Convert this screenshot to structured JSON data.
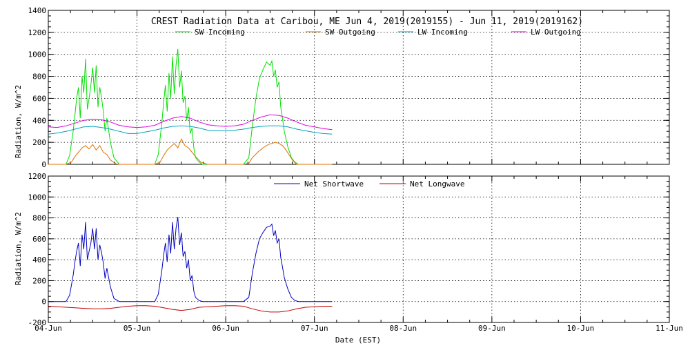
{
  "chart_data": [
    {
      "type": "line",
      "title": "CREST Radiation Data at Caribou, ME   Jun  4, 2019(2019155) - Jun 11, 2019(2019162)",
      "ylabel": "Radiation, W/m^2",
      "xlabel": "",
      "xlim": [
        0,
        7
      ],
      "ylim": [
        0,
        1400
      ],
      "yticks": [
        0,
        200,
        400,
        600,
        800,
        1000,
        1200,
        1400
      ],
      "grid": true,
      "legend": "top",
      "series": [
        {
          "name": "SW Incoming",
          "color": "#00e000",
          "x": [
            0.0,
            0.12,
            0.2,
            0.24,
            0.28,
            0.3,
            0.32,
            0.34,
            0.36,
            0.38,
            0.4,
            0.42,
            0.44,
            0.46,
            0.48,
            0.5,
            0.52,
            0.54,
            0.56,
            0.58,
            0.6,
            0.62,
            0.64,
            0.66,
            0.7,
            0.74,
            0.8,
            1.0,
            1.2,
            1.24,
            1.28,
            1.3,
            1.32,
            1.34,
            1.36,
            1.38,
            1.4,
            1.42,
            1.44,
            1.46,
            1.48,
            1.5,
            1.52,
            1.54,
            1.56,
            1.58,
            1.6,
            1.62,
            1.64,
            1.66,
            1.7,
            1.74,
            1.8,
            2.0,
            2.2,
            2.26,
            2.3,
            2.34,
            2.38,
            2.42,
            2.46,
            2.5,
            2.52,
            2.54,
            2.56,
            2.58,
            2.6,
            2.62,
            2.64,
            2.66,
            2.7,
            2.74,
            2.78,
            2.82,
            2.86,
            3.0,
            3.2
          ],
          "y": [
            0,
            0,
            0,
            80,
            300,
            450,
            600,
            700,
            420,
            800,
            650,
            960,
            500,
            600,
            720,
            880,
            650,
            900,
            520,
            700,
            610,
            480,
            300,
            420,
            200,
            60,
            0,
            0,
            0,
            90,
            380,
            560,
            720,
            480,
            830,
            600,
            980,
            640,
            900,
            1050,
            700,
            850,
            560,
            620,
            400,
            520,
            280,
            330,
            150,
            60,
            20,
            0,
            0,
            0,
            0,
            60,
            350,
            600,
            780,
            860,
            930,
            900,
            940,
            800,
            860,
            700,
            750,
            520,
            420,
            300,
            160,
            60,
            20,
            0,
            0,
            0,
            0
          ]
        },
        {
          "name": "SW Outgoing",
          "color": "#e07000",
          "x": [
            0.0,
            0.12,
            0.2,
            0.26,
            0.3,
            0.34,
            0.38,
            0.42,
            0.46,
            0.5,
            0.54,
            0.58,
            0.62,
            0.66,
            0.7,
            0.76,
            0.8,
            1.0,
            1.2,
            1.26,
            1.3,
            1.34,
            1.38,
            1.42,
            1.46,
            1.5,
            1.54,
            1.58,
            1.62,
            1.66,
            1.72,
            1.8,
            2.0,
            2.2,
            2.26,
            2.3,
            2.36,
            2.42,
            2.48,
            2.52,
            2.56,
            2.6,
            2.64,
            2.68,
            2.72,
            2.76,
            2.8,
            2.86,
            3.0,
            3.2
          ],
          "y": [
            0,
            0,
            0,
            20,
            70,
            110,
            150,
            170,
            140,
            180,
            130,
            170,
            110,
            90,
            40,
            5,
            0,
            0,
            0,
            20,
            80,
            130,
            160,
            190,
            150,
            230,
            170,
            150,
            110,
            70,
            20,
            0,
            0,
            0,
            10,
            60,
            110,
            150,
            180,
            190,
            200,
            190,
            170,
            130,
            80,
            30,
            0,
            0,
            0,
            0
          ]
        },
        {
          "name": "LW Incoming",
          "color": "#00a0c0",
          "x": [
            0.0,
            0.1,
            0.2,
            0.3,
            0.4,
            0.5,
            0.6,
            0.7,
            0.8,
            0.9,
            1.0,
            1.1,
            1.2,
            1.3,
            1.4,
            1.5,
            1.6,
            1.7,
            1.8,
            1.9,
            2.0,
            2.1,
            2.2,
            2.3,
            2.4,
            2.5,
            2.6,
            2.7,
            2.8,
            2.9,
            3.0,
            3.1,
            3.2
          ],
          "y": [
            275,
            285,
            300,
            320,
            340,
            345,
            335,
            320,
            300,
            280,
            280,
            295,
            310,
            330,
            345,
            350,
            345,
            330,
            310,
            305,
            305,
            310,
            320,
            335,
            345,
            350,
            350,
            340,
            320,
            305,
            290,
            280,
            275
          ]
        },
        {
          "name": "LW Outgoing",
          "color": "#e000e0",
          "x": [
            0.0,
            0.1,
            0.2,
            0.3,
            0.4,
            0.5,
            0.6,
            0.7,
            0.8,
            0.9,
            1.0,
            1.1,
            1.2,
            1.3,
            1.4,
            1.5,
            1.6,
            1.7,
            1.8,
            1.9,
            2.0,
            2.1,
            2.2,
            2.3,
            2.4,
            2.5,
            2.6,
            2.7,
            2.8,
            2.9,
            3.0,
            3.1,
            3.2
          ],
          "y": [
            340,
            335,
            350,
            375,
            400,
            410,
            405,
            385,
            355,
            340,
            335,
            340,
            355,
            390,
            420,
            435,
            420,
            385,
            360,
            350,
            345,
            350,
            365,
            400,
            430,
            450,
            445,
            420,
            385,
            355,
            340,
            325,
            315
          ]
        }
      ]
    },
    {
      "type": "line",
      "ylabel": "Radiation, W/m^2",
      "xlabel": "Date (EST)",
      "xlim": [
        0,
        7
      ],
      "ylim": [
        -200,
        1200
      ],
      "yticks": [
        -200,
        0,
        200,
        400,
        600,
        800,
        1000,
        1200
      ],
      "xticks": [
        "04-Jun",
        "05-Jun",
        "06-Jun",
        "07-Jun",
        "08-Jun",
        "09-Jun",
        "10-Jun",
        "11-Jun"
      ],
      "grid": true,
      "legend": "top",
      "series": [
        {
          "name": "Net Shortwave",
          "color": "#0000c0",
          "x": [
            0.0,
            0.12,
            0.2,
            0.24,
            0.28,
            0.3,
            0.32,
            0.34,
            0.36,
            0.38,
            0.4,
            0.42,
            0.44,
            0.46,
            0.48,
            0.5,
            0.52,
            0.54,
            0.56,
            0.58,
            0.6,
            0.62,
            0.64,
            0.66,
            0.7,
            0.74,
            0.8,
            1.0,
            1.2,
            1.24,
            1.28,
            1.3,
            1.32,
            1.34,
            1.36,
            1.38,
            1.4,
            1.42,
            1.44,
            1.46,
            1.48,
            1.5,
            1.52,
            1.54,
            1.56,
            1.58,
            1.6,
            1.62,
            1.64,
            1.66,
            1.7,
            1.74,
            1.8,
            2.0,
            2.2,
            2.26,
            2.3,
            2.34,
            2.38,
            2.42,
            2.46,
            2.5,
            2.52,
            2.54,
            2.56,
            2.58,
            2.6,
            2.62,
            2.64,
            2.66,
            2.7,
            2.74,
            2.78,
            2.82,
            2.86,
            3.0,
            3.2
          ],
          "y": [
            0,
            0,
            0,
            60,
            250,
            380,
            480,
            560,
            340,
            640,
            500,
            760,
            400,
            480,
            560,
            700,
            500,
            700,
            400,
            540,
            470,
            370,
            220,
            320,
            140,
            30,
            0,
            0,
            0,
            70,
            300,
            440,
            560,
            380,
            640,
            460,
            760,
            500,
            700,
            810,
            540,
            660,
            430,
            480,
            320,
            400,
            200,
            250,
            100,
            40,
            10,
            0,
            0,
            0,
            0,
            40,
            270,
            460,
            600,
            660,
            710,
            720,
            740,
            630,
            680,
            560,
            600,
            420,
            330,
            230,
            120,
            40,
            10,
            0,
            0,
            0,
            0
          ]
        },
        {
          "name": "Net Longwave",
          "color": "#c00000",
          "x": [
            0.0,
            0.1,
            0.2,
            0.3,
            0.4,
            0.5,
            0.6,
            0.7,
            0.8,
            0.9,
            1.0,
            1.1,
            1.2,
            1.3,
            1.4,
            1.5,
            1.6,
            1.7,
            1.8,
            1.9,
            2.0,
            2.1,
            2.2,
            2.3,
            2.4,
            2.5,
            2.6,
            2.7,
            2.8,
            2.9,
            3.0,
            3.1,
            3.2
          ],
          "y": [
            -45,
            -50,
            -55,
            -60,
            -65,
            -70,
            -70,
            -65,
            -55,
            -45,
            -40,
            -40,
            -45,
            -60,
            -75,
            -85,
            -75,
            -55,
            -50,
            -45,
            -40,
            -40,
            -45,
            -70,
            -90,
            -100,
            -100,
            -90,
            -70,
            -55,
            -50,
            -45,
            -45
          ]
        }
      ]
    }
  ]
}
